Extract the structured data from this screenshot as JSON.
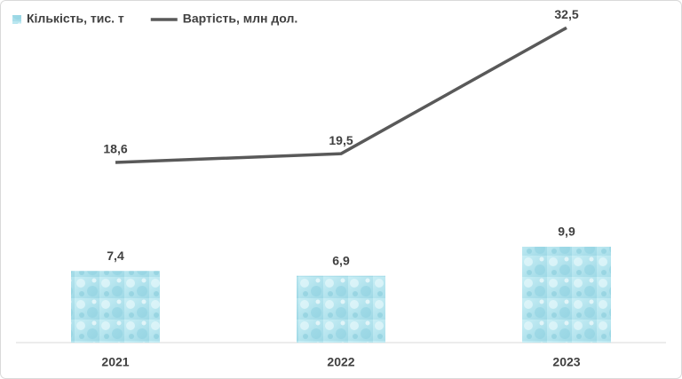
{
  "chart_data": {
    "type": "combo",
    "categories": [
      "2021",
      "2022",
      "2023"
    ],
    "series": [
      {
        "name": "Кількість, тис. т",
        "type": "bar",
        "color": "#b7e6ef",
        "values": [
          7.4,
          6.9,
          9.9
        ],
        "value_labels": [
          "7,4",
          "6,9",
          "9,9"
        ]
      },
      {
        "name": "Вартість, млн дол.",
        "type": "line",
        "color": "#595959",
        "values": [
          18.6,
          19.5,
          32.5
        ],
        "value_labels": [
          "18,6",
          "19,5",
          "32,5"
        ]
      }
    ],
    "ylim": [
      0,
      35
    ],
    "legend": "top-left"
  }
}
